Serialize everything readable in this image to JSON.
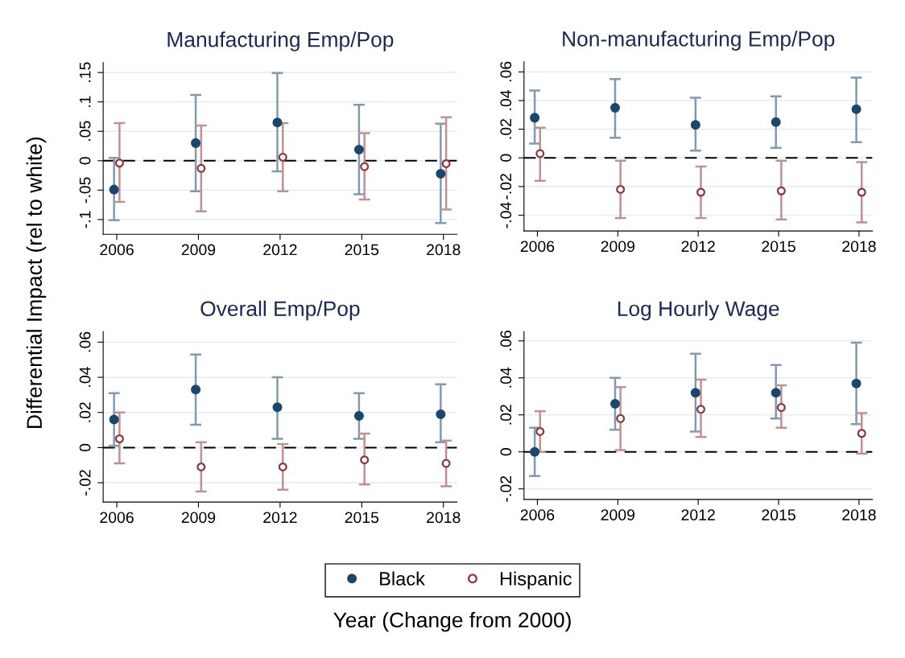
{
  "chart_data": [
    {
      "type": "scatter",
      "title": "Manufacturing Emp/Pop",
      "ylabel": "Differential Impact (rel to white)",
      "legend": "bottom",
      "marker": "circle",
      "grid": "y",
      "xlim": [
        2005.5,
        2018.5
      ],
      "xticks": [
        2006,
        2009,
        2012,
        2015,
        2018
      ],
      "ylim": [
        -0.125,
        0.167
      ],
      "yticks": [
        {
          "value": -0.1,
          "label": "-.1"
        },
        {
          "value": -0.05,
          "label": "-.05"
        },
        {
          "value": 0,
          "label": "0"
        },
        {
          "value": 0.05,
          "label": ".05"
        },
        {
          "value": 0.1,
          "label": ".1"
        },
        {
          "value": 0.15,
          "label": ".15"
        }
      ],
      "ref_lines": [
        {
          "axis": "y",
          "value": 0,
          "color": "#000000",
          "line_style": "dashed"
        }
      ],
      "series": [
        {
          "name": "Black",
          "color": "#1a476f",
          "x": [
            2005.9,
            2008.9,
            2011.9,
            2014.9,
            2017.9
          ],
          "values": [
            -0.049,
            0.03,
            0.065,
            0.019,
            -0.022
          ],
          "errors": [
            [
              -0.101,
              0.005
            ],
            [
              -0.052,
              0.112
            ],
            [
              -0.018,
              0.149
            ],
            [
              -0.057,
              0.095
            ],
            [
              -0.106,
              0.063
            ]
          ]
        },
        {
          "name": "Hispanic",
          "color": "#90353b",
          "x": [
            2006.1,
            2009.1,
            2012.1,
            2015.1,
            2018.1
          ],
          "values": [
            -0.004,
            -0.013,
            0.006,
            -0.01,
            -0.005
          ],
          "errors": [
            [
              -0.07,
              0.064
            ],
            [
              -0.086,
              0.06
            ],
            [
              -0.052,
              0.064
            ],
            [
              -0.066,
              0.047
            ],
            [
              -0.083,
              0.074
            ]
          ]
        }
      ]
    },
    {
      "type": "scatter",
      "title": "Non-manufacturing Emp/Pop",
      "marker": "circle",
      "grid": "y",
      "xlim": [
        2005.5,
        2018.5
      ],
      "xticks": [
        2006,
        2009,
        2012,
        2015,
        2018
      ],
      "ylim": [
        -0.051,
        0.067
      ],
      "yticks": [
        {
          "value": -0.04,
          "label": "-.04"
        },
        {
          "value": -0.02,
          "label": "-.02"
        },
        {
          "value": 0,
          "label": "0"
        },
        {
          "value": 0.02,
          "label": ".02"
        },
        {
          "value": 0.04,
          "label": ".04"
        },
        {
          "value": 0.06,
          "label": ".06"
        }
      ],
      "ref_lines": [
        {
          "axis": "y",
          "value": 0,
          "color": "#000000",
          "line_style": "dashed"
        }
      ],
      "series": [
        {
          "color": "#1a476f",
          "x": [
            2005.9,
            2008.9,
            2011.9,
            2014.9,
            2017.9
          ],
          "values": [
            0.028,
            0.035,
            0.023,
            0.025,
            0.034
          ],
          "errors": [
            [
              0.01,
              0.047
            ],
            [
              0.014,
              0.055
            ],
            [
              0.005,
              0.042
            ],
            [
              0.007,
              0.043
            ],
            [
              0.011,
              0.056
            ]
          ]
        },
        {
          "color": "#90353b",
          "x": [
            2006.1,
            2009.1,
            2012.1,
            2015.1,
            2018.1
          ],
          "values": [
            0.003,
            -0.022,
            -0.024,
            -0.023,
            -0.024
          ],
          "errors": [
            [
              -0.016,
              0.021
            ],
            [
              -0.042,
              -0.002
            ],
            [
              -0.042,
              -0.006
            ],
            [
              -0.043,
              -0.002
            ],
            [
              -0.045,
              -0.003
            ]
          ]
        }
      ]
    },
    {
      "type": "scatter",
      "title": "Overall Emp/Pop",
      "xlabel": "Year (Change from 2000)",
      "marker": "circle",
      "grid": "y",
      "xlim": [
        2005.5,
        2018.5
      ],
      "xticks": [
        2006,
        2009,
        2012,
        2015,
        2018
      ],
      "ylim": [
        -0.031,
        0.066
      ],
      "yticks": [
        {
          "value": -0.02,
          "label": "-.02"
        },
        {
          "value": 0,
          "label": "0"
        },
        {
          "value": 0.02,
          "label": ".02"
        },
        {
          "value": 0.04,
          "label": ".04"
        },
        {
          "value": 0.06,
          "label": ".06"
        }
      ],
      "ref_lines": [
        {
          "axis": "y",
          "value": 0,
          "color": "#000000",
          "line_style": "dashed"
        }
      ],
      "series": [
        {
          "color": "#1a476f",
          "x": [
            2005.9,
            2008.9,
            2011.9,
            2014.9,
            2017.9
          ],
          "values": [
            0.016,
            0.033,
            0.023,
            0.018,
            0.019
          ],
          "errors": [
            [
              0.001,
              0.031
            ],
            [
              0.013,
              0.053
            ],
            [
              0.005,
              0.04
            ],
            [
              0.005,
              0.031
            ],
            [
              0.003,
              0.036
            ]
          ]
        },
        {
          "color": "#90353b",
          "x": [
            2006.1,
            2009.1,
            2012.1,
            2015.1,
            2018.1
          ],
          "values": [
            0.005,
            -0.011,
            -0.011,
            -0.007,
            -0.009
          ],
          "errors": [
            [
              -0.009,
              0.02
            ],
            [
              -0.025,
              0.003
            ],
            [
              -0.024,
              0.002
            ],
            [
              -0.021,
              0.008
            ],
            [
              -0.022,
              0.004
            ]
          ]
        }
      ]
    },
    {
      "type": "scatter",
      "title": "Log Hourly Wage",
      "marker": "circle",
      "grid": "y",
      "xlim": [
        2005.5,
        2018.5
      ],
      "xticks": [
        2006,
        2009,
        2012,
        2015,
        2018
      ],
      "ylim": [
        -0.0257,
        0.065
      ],
      "yticks": [
        {
          "value": -0.02,
          "label": "-.02"
        },
        {
          "value": 0,
          "label": "0"
        },
        {
          "value": 0.02,
          "label": ".02"
        },
        {
          "value": 0.04,
          "label": ".04"
        },
        {
          "value": 0.06,
          "label": ".06"
        }
      ],
      "ref_lines": [
        {
          "axis": "y",
          "value": 0,
          "color": "#000000",
          "line_style": "dashed"
        }
      ],
      "series": [
        {
          "color": "#1a476f",
          "x": [
            2005.9,
            2008.9,
            2011.9,
            2014.9,
            2017.9
          ],
          "values": [
            0.0,
            0.026,
            0.032,
            0.032,
            0.037
          ],
          "errors": [
            [
              -0.013,
              0.013
            ],
            [
              0.012,
              0.04
            ],
            [
              0.011,
              0.053
            ],
            [
              0.018,
              0.047
            ],
            [
              0.015,
              0.059
            ]
          ]
        },
        {
          "color": "#90353b",
          "x": [
            2006.1,
            2009.1,
            2012.1,
            2015.1,
            2018.1
          ],
          "values": [
            0.011,
            0.018,
            0.023,
            0.024,
            0.01
          ],
          "errors": [
            [
              0.0,
              0.022
            ],
            [
              0.001,
              0.035
            ],
            [
              0.008,
              0.039
            ],
            [
              0.013,
              0.036
            ],
            [
              -0.001,
              0.021
            ]
          ]
        }
      ]
    }
  ]
}
